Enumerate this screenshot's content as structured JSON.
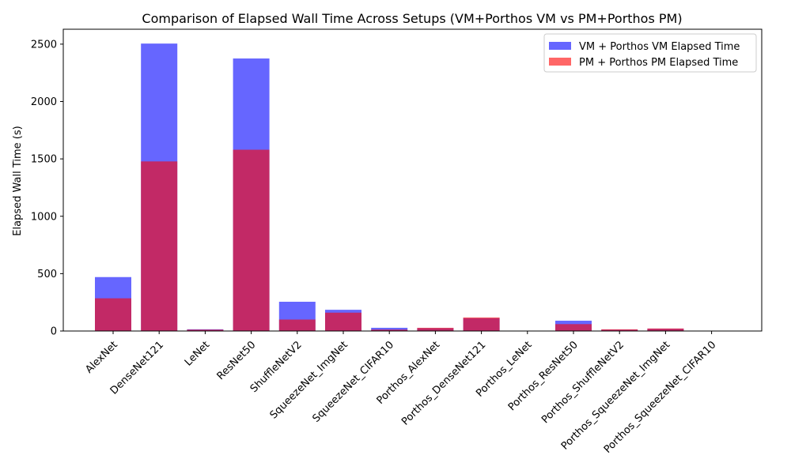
{
  "chart_data": {
    "type": "bar",
    "title": "Comparison of Elapsed Wall Time Across Setups (VM+Porthos VM vs PM+Porthos PM)",
    "xlabel": "",
    "ylabel": "Elapsed Wall Time (s)",
    "ylim": [
      0,
      2630
    ],
    "yticks": [
      0,
      500,
      1000,
      1500,
      2000,
      2500
    ],
    "legend_position": "top-right",
    "grid": false,
    "categories": [
      "AlexNet",
      "DenseNet121",
      "LeNet",
      "ResNet50",
      "ShuffleNetV2",
      "SqueezeNet_ImgNet",
      "SqueezeNet_CIFAR10",
      "Porthos_AlexNet",
      "Porthos_DenseNet121",
      "Porthos_LeNet",
      "Porthos_ResNet50",
      "Porthos_ShuffleNetV2",
      "Porthos_SqueezeNet_ImgNet",
      "Porthos_SqueezeNet_CIFAR10"
    ],
    "series": [
      {
        "name": "VM + Porthos VM Elapsed Time",
        "color": "#0000ff",
        "values": [
          470,
          2505,
          15,
          2375,
          255,
          185,
          28,
          25,
          112,
          2,
          90,
          12,
          20,
          2
        ]
      },
      {
        "name": "PM + Porthos PM Elapsed Time",
        "color": "#ff0000",
        "values": [
          285,
          1478,
          12,
          1580,
          100,
          160,
          12,
          28,
          118,
          2,
          60,
          15,
          22,
          2
        ]
      }
    ]
  }
}
